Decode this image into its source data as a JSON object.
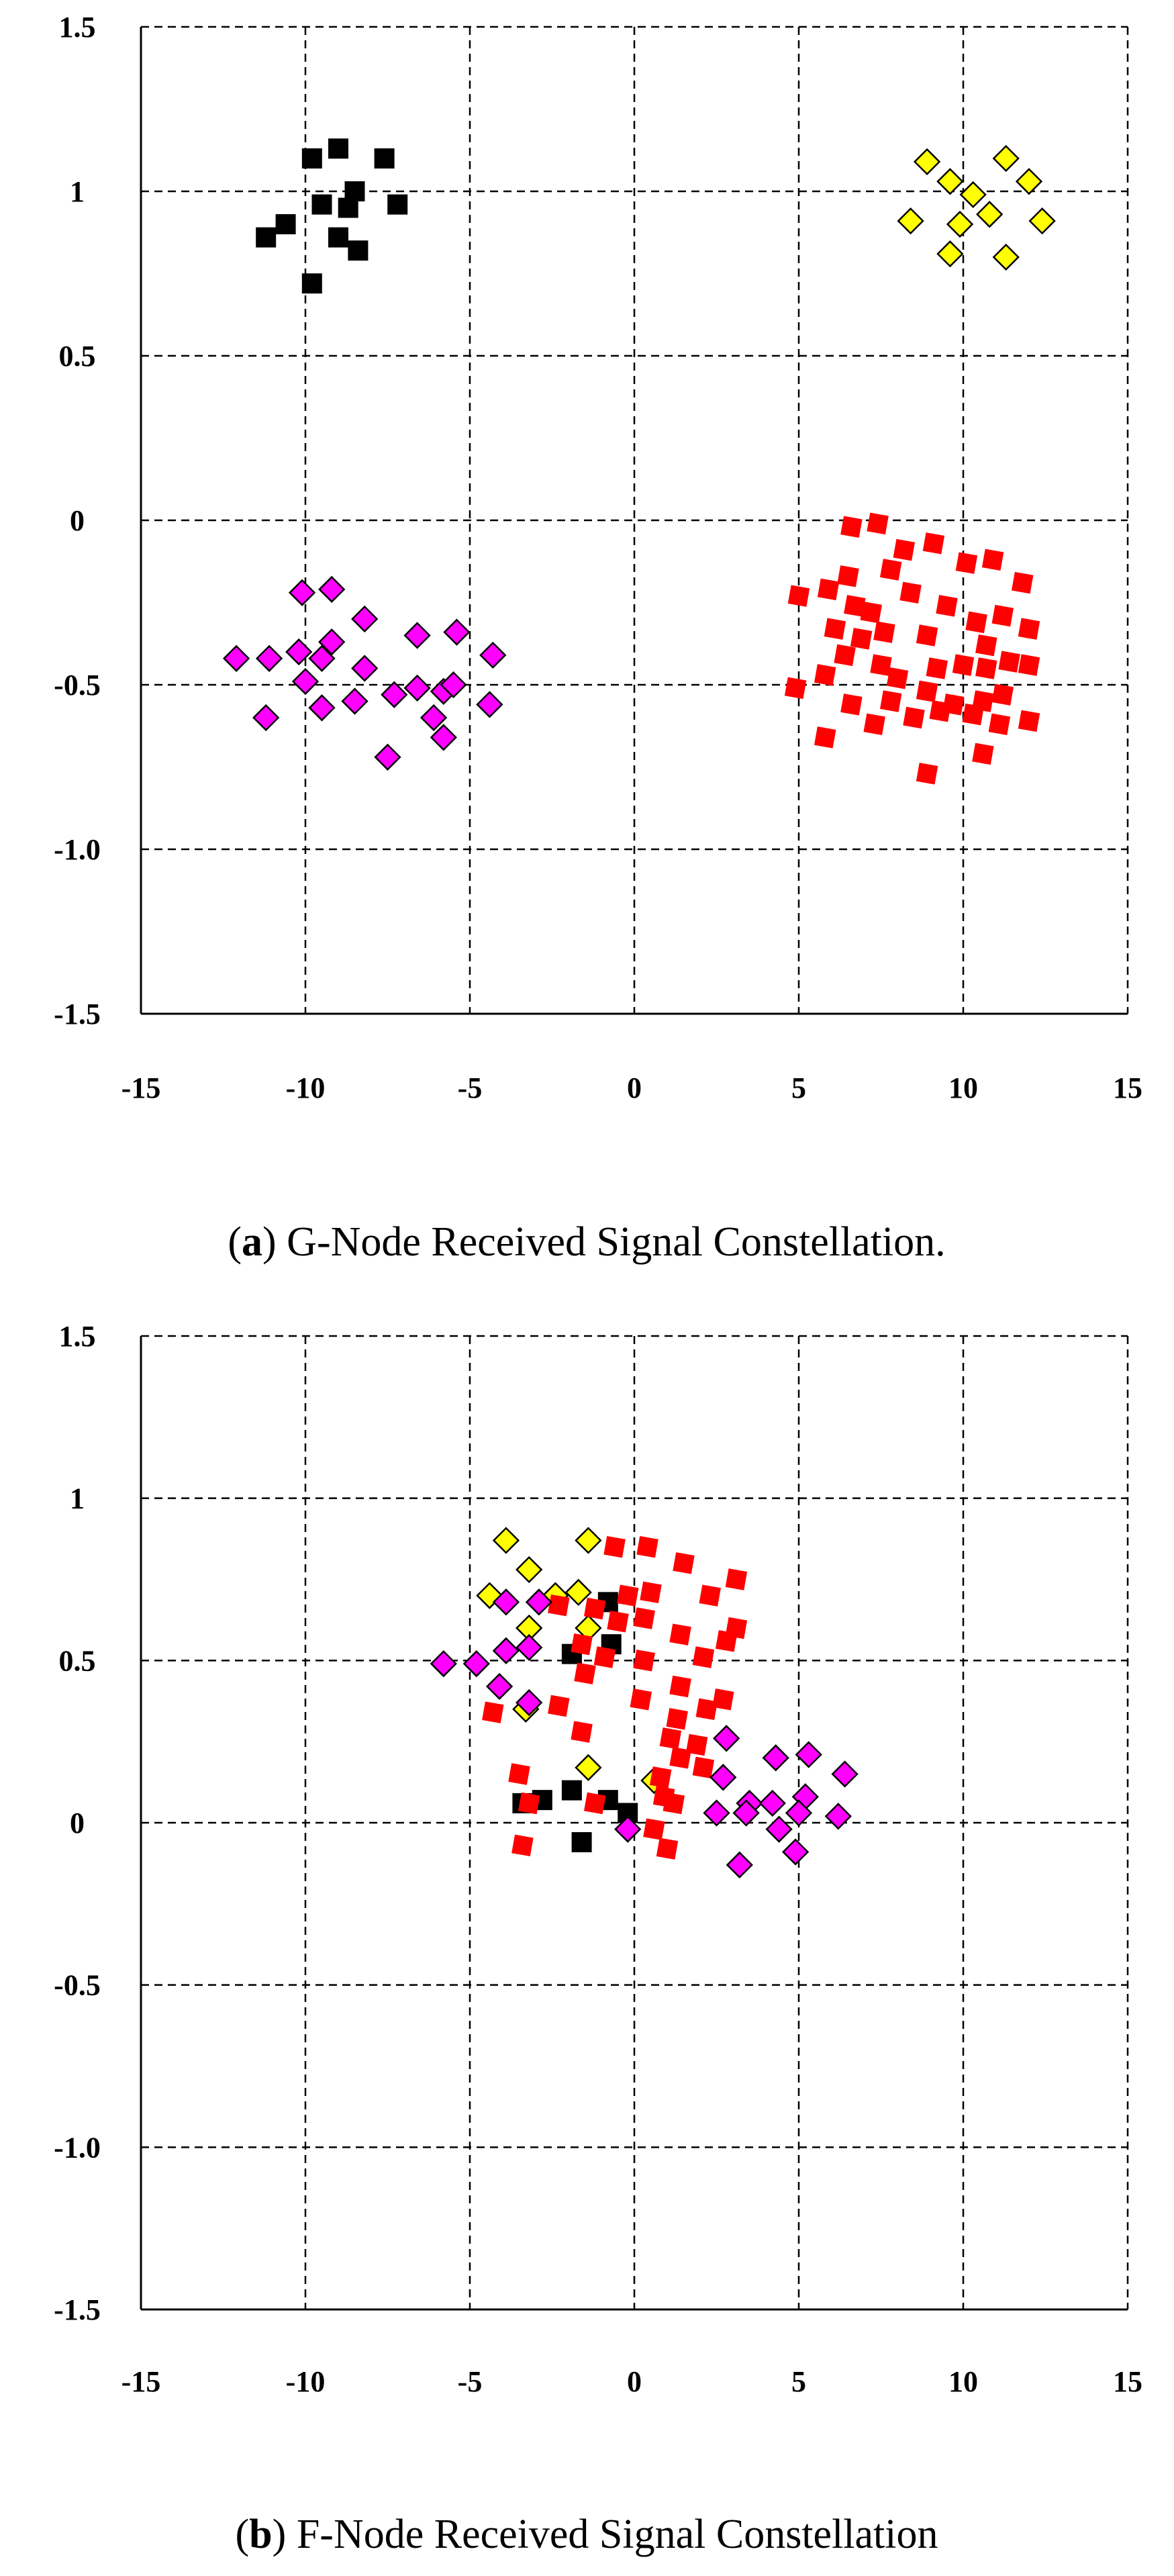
{
  "colors": {
    "black": "#000000",
    "yellow": "#FFFF00",
    "magenta": "#FF00FF",
    "red": "#FF0000"
  },
  "chart_data": [
    {
      "type": "scatter",
      "id": "a",
      "caption_label": "a",
      "caption_text": "G-Node Received Signal Constellation.",
      "xlim": [
        -15,
        15
      ],
      "ylim": [
        -1.5,
        1.5
      ],
      "grid": true,
      "x_ticks": [
        "-15",
        "-10",
        "-5",
        "0",
        "5",
        "10",
        "15"
      ],
      "x_tick_values": [
        -15,
        -10,
        -5,
        0,
        5,
        10,
        15
      ],
      "y_ticks": [
        "1.5",
        "1",
        "0.5",
        "0",
        "-0.5",
        "-1.0",
        "-1.5"
      ],
      "y_tick_values": [
        1.5,
        1,
        0.5,
        0,
        -0.5,
        -1.0,
        -1.5
      ],
      "series": [
        {
          "name": "black",
          "marker": "square",
          "color_key": "black",
          "points": [
            [
              -9.8,
              1.1
            ],
            [
              -9,
              1.13
            ],
            [
              -7.6,
              1.1
            ],
            [
              -10.6,
              0.9
            ],
            [
              -9.5,
              0.96
            ],
            [
              -8.5,
              1.0
            ],
            [
              -8.7,
              0.95
            ],
            [
              -7.2,
              0.96
            ],
            [
              -11.2,
              0.86
            ],
            [
              -9,
              0.86
            ],
            [
              -8.4,
              0.82
            ],
            [
              -9.8,
              0.72
            ]
          ]
        },
        {
          "name": "yellow",
          "marker": "diamond",
          "color_key": "yellow",
          "points": [
            [
              8.9,
              1.09
            ],
            [
              11.3,
              1.1
            ],
            [
              9.6,
              1.03
            ],
            [
              10.3,
              0.99
            ],
            [
              12,
              1.03
            ],
            [
              8.4,
              0.91
            ],
            [
              9.9,
              0.9
            ],
            [
              10.8,
              0.93
            ],
            [
              12.4,
              0.91
            ],
            [
              9.6,
              0.81
            ],
            [
              11.3,
              0.8
            ]
          ]
        },
        {
          "name": "magenta",
          "marker": "diamond",
          "color_key": "magenta",
          "points": [
            [
              -10.1,
              -0.22
            ],
            [
              -9.2,
              -0.21
            ],
            [
              -8.2,
              -0.3
            ],
            [
              -12.1,
              -0.42
            ],
            [
              -11.1,
              -0.42
            ],
            [
              -10.2,
              -0.4
            ],
            [
              -9.2,
              -0.37
            ],
            [
              -9.5,
              -0.42
            ],
            [
              -8.2,
              -0.45
            ],
            [
              -6.6,
              -0.35
            ],
            [
              -5.4,
              -0.34
            ],
            [
              -4.3,
              -0.41
            ],
            [
              -10,
              -0.49
            ],
            [
              -9.5,
              -0.57
            ],
            [
              -8.5,
              -0.55
            ],
            [
              -7.3,
              -0.53
            ],
            [
              -6.6,
              -0.51
            ],
            [
              -5.8,
              -0.52
            ],
            [
              -5.5,
              -0.5
            ],
            [
              -4.4,
              -0.56
            ],
            [
              -11.2,
              -0.6
            ],
            [
              -6.1,
              -0.6
            ],
            [
              -5.8,
              -0.66
            ],
            [
              -7.5,
              -0.72
            ]
          ]
        },
        {
          "name": "red",
          "marker": "diamond-filled",
          "color_key": "red",
          "points": [
            [
              6.6,
              -0.02
            ],
            [
              7.4,
              -0.01
            ],
            [
              5,
              -0.23
            ],
            [
              5.9,
              -0.21
            ],
            [
              6.5,
              -0.17
            ],
            [
              7.8,
              -0.15
            ],
            [
              8.2,
              -0.09
            ],
            [
              9.1,
              -0.07
            ],
            [
              10.1,
              -0.13
            ],
            [
              10.9,
              -0.12
            ],
            [
              11.8,
              -0.19
            ],
            [
              6.7,
              -0.26
            ],
            [
              7.2,
              -0.28
            ],
            [
              7.6,
              -0.34
            ],
            [
              8.4,
              -0.22
            ],
            [
              9.5,
              -0.26
            ],
            [
              10.4,
              -0.31
            ],
            [
              11.2,
              -0.29
            ],
            [
              6.1,
              -0.33
            ],
            [
              6.9,
              -0.36
            ],
            [
              8.9,
              -0.35
            ],
            [
              10.7,
              -0.38
            ],
            [
              12,
              -0.33
            ],
            [
              5.8,
              -0.47
            ],
            [
              4.9,
              -0.51
            ],
            [
              6.4,
              -0.41
            ],
            [
              7.5,
              -0.44
            ],
            [
              8,
              -0.48
            ],
            [
              9.2,
              -0.45
            ],
            [
              10,
              -0.44
            ],
            [
              10.7,
              -0.45
            ],
            [
              11.4,
              -0.43
            ],
            [
              12,
              -0.44
            ],
            [
              6.6,
              -0.56
            ],
            [
              7.8,
              -0.55
            ],
            [
              8.9,
              -0.52
            ],
            [
              9.7,
              -0.56
            ],
            [
              10.6,
              -0.55
            ],
            [
              11.2,
              -0.53
            ],
            [
              7.3,
              -0.62
            ],
            [
              8.5,
              -0.6
            ],
            [
              9.3,
              -0.58
            ],
            [
              10.3,
              -0.59
            ],
            [
              11.1,
              -0.62
            ],
            [
              12,
              -0.61
            ],
            [
              5.8,
              -0.66
            ],
            [
              10.6,
              -0.71
            ],
            [
              8.9,
              -0.77
            ]
          ]
        }
      ]
    },
    {
      "type": "scatter",
      "id": "b",
      "caption_label": "b",
      "caption_text": "F-Node Received Signal Constellation",
      "xlim": [
        -15,
        15
      ],
      "ylim": [
        -1.5,
        1.5
      ],
      "grid": true,
      "x_ticks": [
        "-15",
        "-10",
        "-5",
        "0",
        "5",
        "10",
        "15"
      ],
      "x_tick_values": [
        -15,
        -10,
        -5,
        0,
        5,
        10,
        15
      ],
      "y_ticks": [
        "1.5",
        "1",
        "0.5",
        "0",
        "-0.5",
        "-1.0",
        "-1.5"
      ],
      "y_tick_values": [
        1.5,
        1,
        0.5,
        0,
        -0.5,
        -1.0,
        -1.5
      ],
      "series": [
        {
          "name": "black",
          "marker": "square",
          "color_key": "black",
          "points": [
            [
              -0.8,
              0.68
            ],
            [
              -1.9,
              0.52
            ],
            [
              -0.7,
              0.55
            ],
            [
              -3.4,
              0.06
            ],
            [
              -2.8,
              0.07
            ],
            [
              -1.9,
              0.1
            ],
            [
              -0.8,
              0.07
            ],
            [
              -0.2,
              0.03
            ],
            [
              -1.6,
              -0.06
            ]
          ]
        },
        {
          "name": "yellow",
          "marker": "diamond",
          "color_key": "yellow",
          "points": [
            [
              -3.9,
              0.87
            ],
            [
              -1.4,
              0.87
            ],
            [
              -3.2,
              0.78
            ],
            [
              -4.4,
              0.7
            ],
            [
              -2.4,
              0.7
            ],
            [
              -1.7,
              0.71
            ],
            [
              -3.2,
              0.6
            ],
            [
              -1.4,
              0.6
            ],
            [
              -3.3,
              0.35
            ],
            [
              -1.4,
              0.17
            ],
            [
              0.6,
              0.13
            ]
          ]
        },
        {
          "name": "red",
          "marker": "diamond-filled",
          "color_key": "red",
          "points": [
            [
              -0.6,
              0.85
            ],
            [
              0.4,
              0.85
            ],
            [
              1.5,
              0.8
            ],
            [
              3.1,
              0.75
            ],
            [
              -0.2,
              0.7
            ],
            [
              0.5,
              0.71
            ],
            [
              2.3,
              0.7
            ],
            [
              -2.3,
              0.67
            ],
            [
              -1.2,
              0.66
            ],
            [
              -0.5,
              0.62
            ],
            [
              0.3,
              0.63
            ],
            [
              -1.6,
              0.55
            ],
            [
              1.4,
              0.58
            ],
            [
              2.8,
              0.56
            ],
            [
              3.1,
              0.6
            ],
            [
              -1.5,
              0.46
            ],
            [
              -0.9,
              0.51
            ],
            [
              0.3,
              0.5
            ],
            [
              2.1,
              0.51
            ],
            [
              1.4,
              0.42
            ],
            [
              2.7,
              0.38
            ],
            [
              -4.3,
              0.34
            ],
            [
              -2.3,
              0.36
            ],
            [
              0.2,
              0.38
            ],
            [
              1.3,
              0.32
            ],
            [
              2.2,
              0.35
            ],
            [
              -1.6,
              0.28
            ],
            [
              1.1,
              0.26
            ],
            [
              1.9,
              0.24
            ],
            [
              -3.5,
              0.15
            ],
            [
              0.8,
              0.14
            ],
            [
              1.4,
              0.2
            ],
            [
              2.1,
              0.17
            ],
            [
              -3.2,
              0.06
            ],
            [
              -1.2,
              0.06
            ],
            [
              0.9,
              0.08
            ],
            [
              1.2,
              0.06
            ],
            [
              0.6,
              -0.02
            ],
            [
              1,
              -0.08
            ],
            [
              -3.4,
              -0.07
            ]
          ]
        },
        {
          "name": "magenta",
          "marker": "diamond",
          "color_key": "magenta",
          "points": [
            [
              -3.9,
              0.68
            ],
            [
              -2.9,
              0.68
            ],
            [
              -5.8,
              0.49
            ],
            [
              -4.8,
              0.49
            ],
            [
              -3.9,
              0.53
            ],
            [
              -3.2,
              0.54
            ],
            [
              -4.1,
              0.42
            ],
            [
              -3.2,
              0.37
            ],
            [
              2.8,
              0.26
            ],
            [
              4.3,
              0.2
            ],
            [
              5.3,
              0.21
            ],
            [
              6.4,
              0.15
            ],
            [
              2.7,
              0.14
            ],
            [
              3.5,
              0.06
            ],
            [
              4.2,
              0.06
            ],
            [
              5.2,
              0.08
            ],
            [
              2.5,
              0.03
            ],
            [
              3.4,
              0.03
            ],
            [
              5,
              0.03
            ],
            [
              6.2,
              0.02
            ],
            [
              -0.2,
              -0.02
            ],
            [
              4.4,
              -0.02
            ],
            [
              4.9,
              -0.09
            ],
            [
              3.2,
              -0.13
            ]
          ]
        }
      ]
    }
  ]
}
